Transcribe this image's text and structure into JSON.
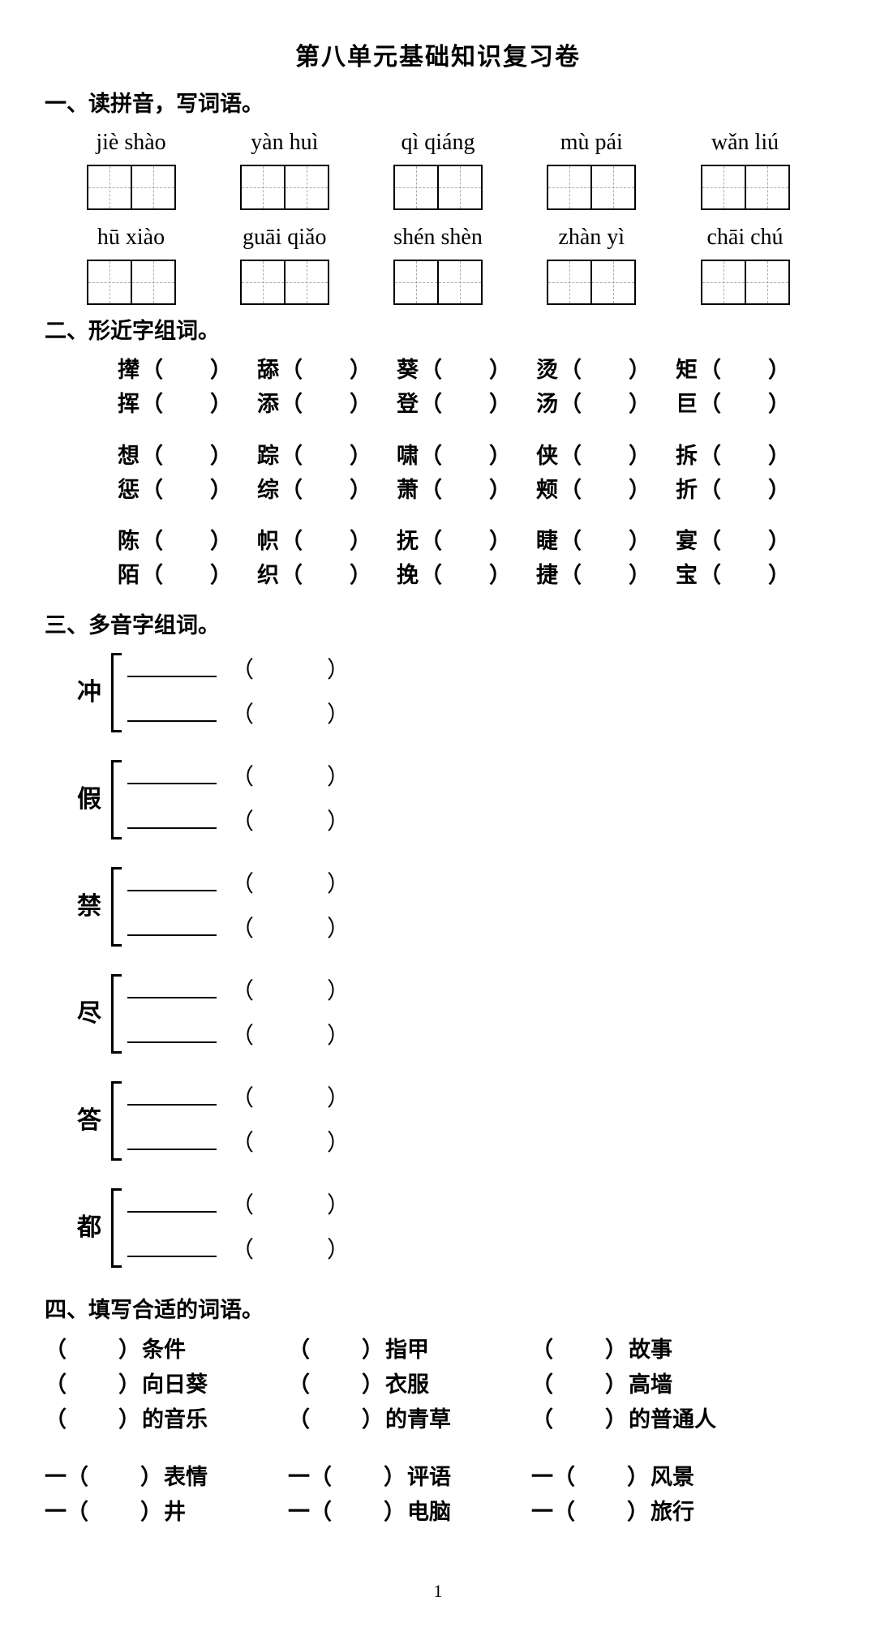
{
  "title": "第八单元基础知识复习卷",
  "page_number": "1",
  "section1": {
    "heading": "一、读拼音，写词语。",
    "rows": [
      [
        "jiè shào",
        "yàn huì",
        "qì qiáng",
        "mù pái",
        "wǎn liú"
      ],
      [
        "hū xiào",
        "guāi qiǎo",
        "shén shèn",
        "zhàn yì",
        "chāi chú"
      ]
    ]
  },
  "section2": {
    "heading": "二、形近字组词。",
    "groups": [
      [
        [
          "撵",
          "舔",
          "葵",
          "烫",
          "矩"
        ],
        [
          "挥",
          "添",
          "登",
          "汤",
          "巨"
        ]
      ],
      [
        [
          "想",
          "踪",
          "啸",
          "侠",
          "拆"
        ],
        [
          "惩",
          "综",
          "萧",
          "颊",
          "折"
        ]
      ],
      [
        [
          "陈",
          "帜",
          "抚",
          "睫",
          "宴"
        ],
        [
          "陌",
          "织",
          "挽",
          "捷",
          "宝"
        ]
      ]
    ]
  },
  "section3": {
    "heading": "三、多音字组词。",
    "chars": [
      "冲",
      "假",
      "禁",
      "尽",
      "答",
      "都"
    ]
  },
  "section4": {
    "heading": "四、填写合适的词语。",
    "block1": [
      [
        "条件",
        "指甲",
        "故事"
      ],
      [
        "向日葵",
        "衣服",
        "高墙"
      ],
      [
        "的音乐",
        "的青草",
        "的普通人"
      ]
    ],
    "block2": [
      [
        "表情",
        "评语",
        "风景"
      ],
      [
        "井",
        "电脑",
        "旅行"
      ]
    ]
  },
  "parens": {
    "open": "（",
    "close": "）"
  },
  "colors": {
    "text": "#000000",
    "bg": "#ffffff",
    "dashed": "#aaaaaa"
  }
}
